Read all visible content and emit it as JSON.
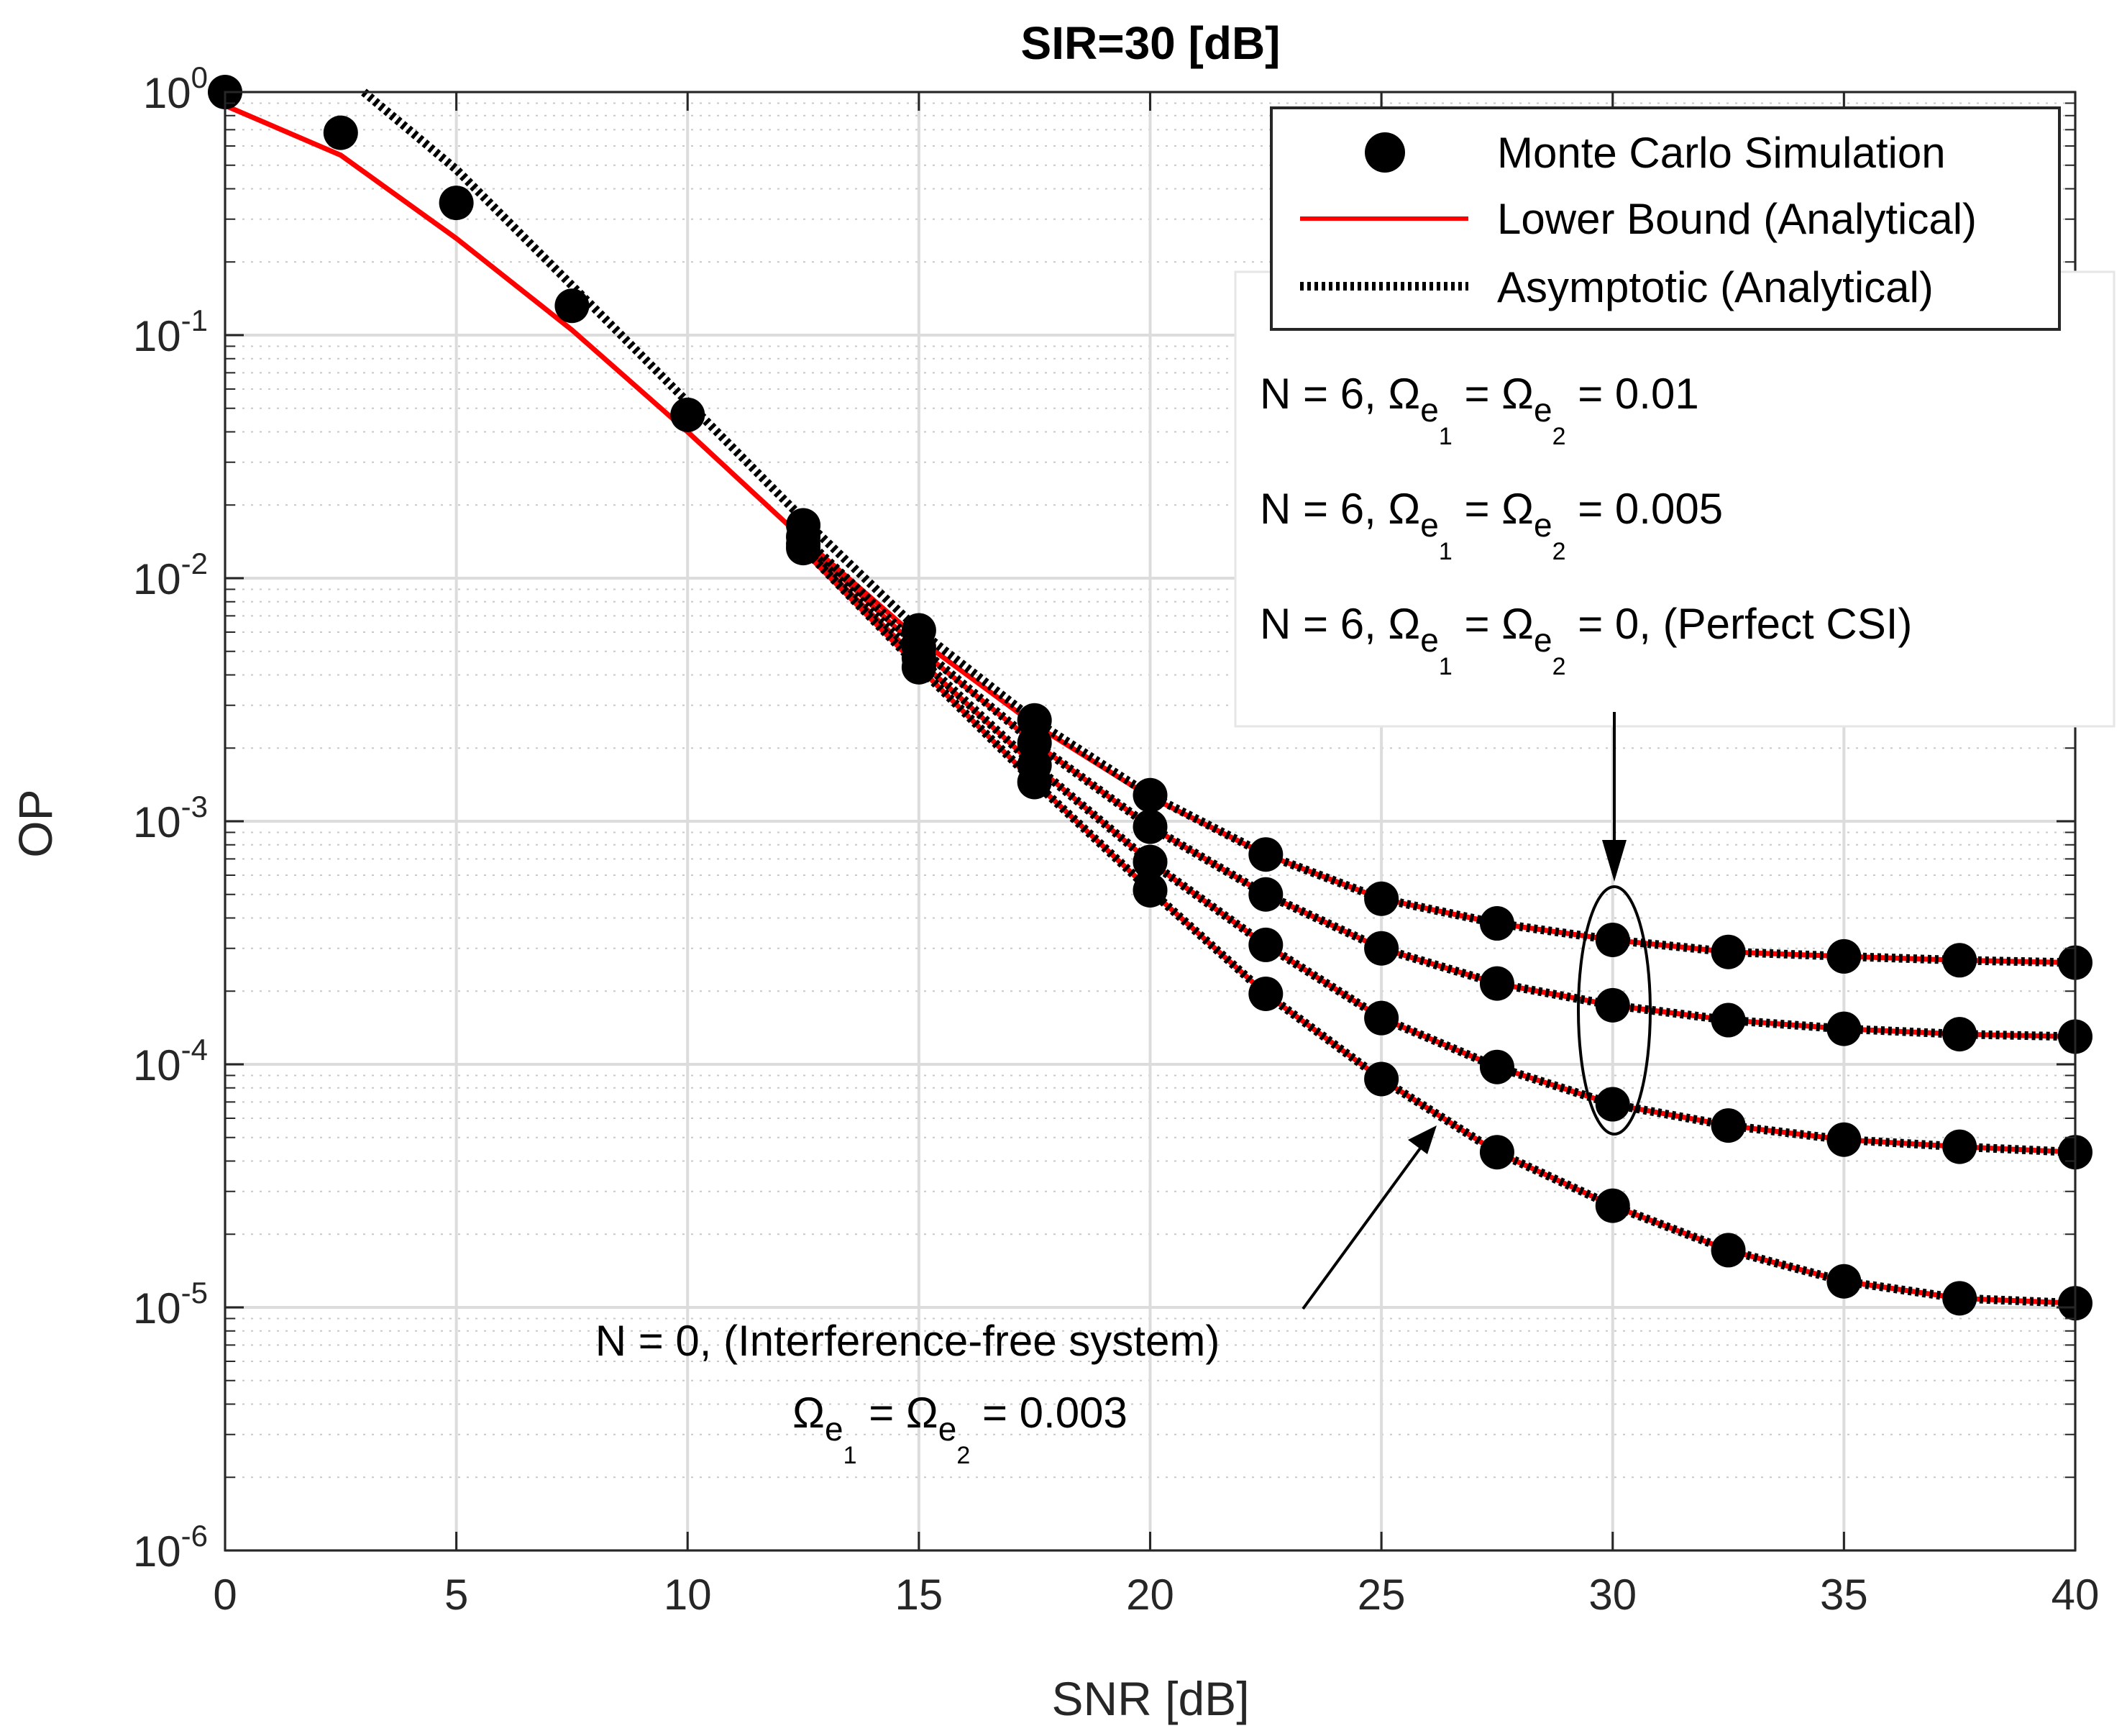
{
  "chart_data": {
    "type": "line",
    "title": "SIR=30 [dB]",
    "xlabel": "SNR [dB]",
    "ylabel": "OP",
    "xlim": [
      0,
      40
    ],
    "ylim": [
      1e-06,
      1
    ],
    "yscale": "log",
    "grid": true,
    "xticks": [
      "0",
      "5",
      "10",
      "15",
      "20",
      "25",
      "30",
      "35",
      "40"
    ],
    "yticks": [
      {
        "base": "10",
        "exp": "0"
      },
      {
        "base": "10",
        "exp": "-1"
      },
      {
        "base": "10",
        "exp": "-2"
      },
      {
        "base": "10",
        "exp": "-3"
      },
      {
        "base": "10",
        "exp": "-4"
      },
      {
        "base": "10",
        "exp": "-5"
      },
      {
        "base": "10",
        "exp": "-6"
      }
    ],
    "legend": {
      "position": "top-right",
      "entries": [
        "Monte Carlo Simulation",
        "Lower Bound (Analytical)",
        "Asymptotic (Analytical)"
      ]
    },
    "series": [
      {
        "name": "N = 6, Ωe1 = Ωe2 = 0.01",
        "x": [
          0,
          2.5,
          5,
          7.5,
          10,
          12.5,
          15,
          17.5,
          20,
          22.5,
          25,
          27.5,
          30,
          32.5,
          35,
          37.5,
          40
        ],
        "sim": [
          1.0,
          0.68,
          0.35,
          0.132,
          0.047,
          0.0165,
          0.0061,
          0.0026,
          0.00128,
          0.00073,
          0.00048,
          0.00038,
          0.000325,
          0.00029,
          0.000278,
          0.000268,
          0.000262
        ],
        "lower": [
          0.88,
          0.55,
          0.25,
          0.105,
          0.04,
          0.0145,
          0.0056,
          0.0025,
          0.00126,
          0.00073,
          0.00048,
          0.00038,
          0.000325,
          0.00029,
          0.000278,
          0.000268,
          0.000262
        ],
        "asym_start": 12.5
      },
      {
        "name": "N = 6, Ωe1 = Ωe2 = 0.005",
        "x": [
          12.5,
          15,
          17.5,
          20,
          22.5,
          25,
          27.5,
          30,
          32.5,
          35,
          37.5,
          40
        ],
        "sim": [
          0.0148,
          0.0052,
          0.0021,
          0.00095,
          0.0005,
          0.0003,
          0.000215,
          0.000175,
          0.000152,
          0.00014,
          0.000133,
          0.00013
        ],
        "lower": [
          0.0142,
          0.0051,
          0.0021,
          0.00095,
          0.0005,
          0.0003,
          0.000215,
          0.000175,
          0.000152,
          0.00014,
          0.000133,
          0.00013
        ]
      },
      {
        "name": "N = 6, Ωe1 = Ωe2 = 0, (Perfect CSI)",
        "x": [
          12.5,
          15,
          17.5,
          20,
          22.5,
          25,
          27.5,
          30,
          32.5,
          35,
          37.5,
          40
        ],
        "sim": [
          0.0138,
          0.0047,
          0.0017,
          0.00068,
          0.00031,
          0.000155,
          9.75e-05,
          6.85e-05,
          5.6e-05,
          4.9e-05,
          4.58e-05,
          4.35e-05
        ],
        "lower": [
          0.0134,
          0.0046,
          0.0017,
          0.00068,
          0.00031,
          0.000155,
          9.75e-05,
          6.85e-05,
          5.6e-05,
          4.9e-05,
          4.58e-05,
          4.35e-05
        ]
      },
      {
        "name": "N = 0, (Interference-free system) Ωe1 = Ωe2 = 0.003",
        "x": [
          12.5,
          15,
          17.5,
          20,
          22.5,
          25,
          27.5,
          30,
          32.5,
          35,
          37.5,
          40
        ],
        "sim": [
          0.0133,
          0.0043,
          0.00145,
          0.00052,
          0.000195,
          8.7e-05,
          4.35e-05,
          2.62e-05,
          1.72e-05,
          1.28e-05,
          1.09e-05,
          1.04e-05
        ],
        "lower": [
          0.013,
          0.0043,
          0.00145,
          0.00052,
          0.000195,
          8.7e-05,
          4.35e-05,
          2.62e-05,
          1.72e-05,
          1.28e-05,
          1.09e-05,
          1.04e-05
        ]
      }
    ],
    "asymptotic_prefix": {
      "x": [
        3,
        5,
        7.5,
        10,
        12.5
      ],
      "y": [
        1.0,
        0.48,
        0.16,
        0.053,
        0.0175
      ]
    },
    "annotations": {
      "n6": [
        {
          "prefix": "N = 6, Ω",
          "sub1": "e",
          "sub1b": "1",
          "mid": " = Ω",
          "sub2": "e",
          "sub2b": "2",
          "suffix": " = 0.01"
        },
        {
          "prefix": "N = 6, Ω",
          "sub1": "e",
          "sub1b": "1",
          "mid": " = Ω",
          "sub2": "e",
          "sub2b": "2",
          "suffix": " = 0.005"
        },
        {
          "prefix": "N = 6, Ω",
          "sub1": "e",
          "sub1b": "1",
          "mid": " = Ω",
          "sub2": "e",
          "sub2b": "2",
          "suffix": " = 0, (Perfect CSI)"
        }
      ],
      "n0_line1": "N = 0, (Interference-free system)",
      "n0_line2": {
        "prefix": "Ω",
        "sub1": "e",
        "sub1b": "1",
        "mid": " = Ω",
        "sub2": "e",
        "sub2b": "2",
        "suffix": " = 0.003"
      }
    }
  }
}
